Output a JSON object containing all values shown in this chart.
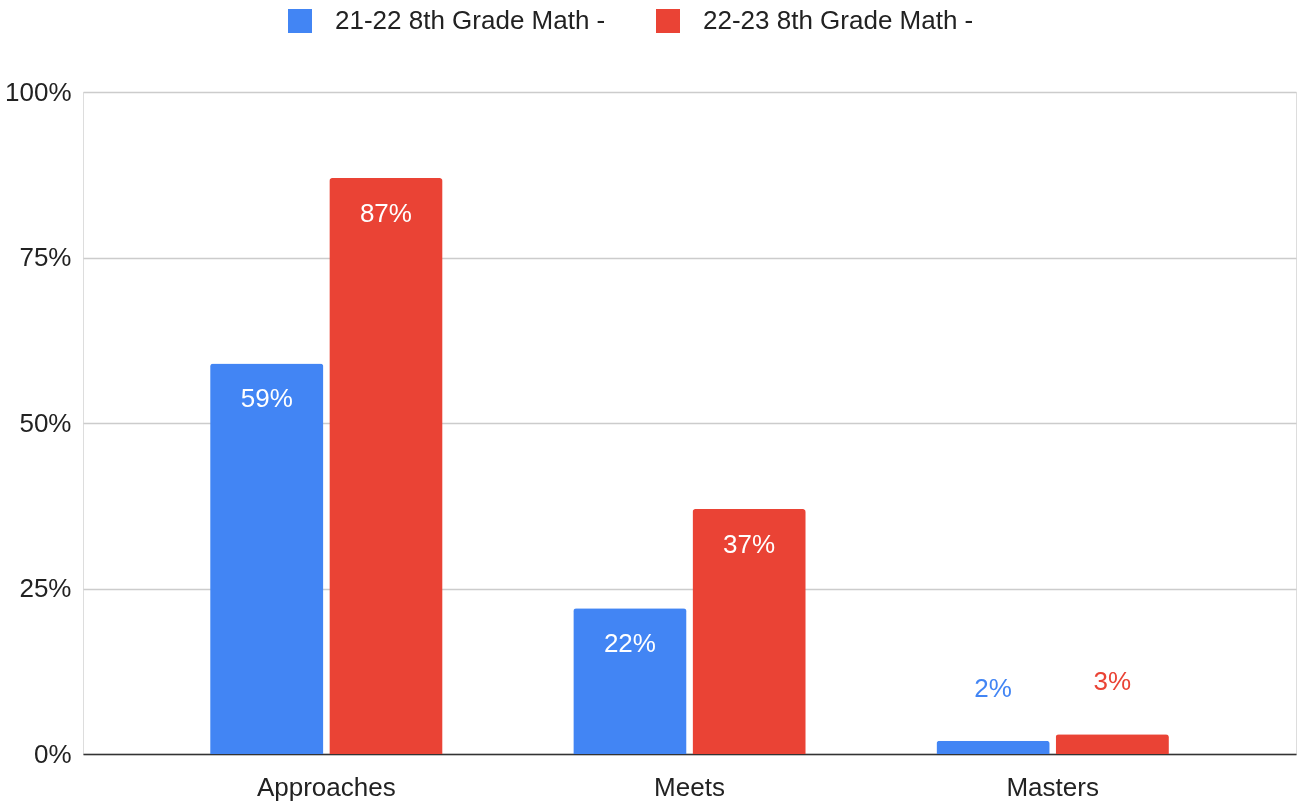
{
  "chart_data": {
    "type": "bar",
    "categories": [
      "Approaches",
      "Meets",
      "Masters"
    ],
    "series": [
      {
        "name": "21-22 8th Grade Math -",
        "color": "#4285f4",
        "values": [
          59,
          22,
          2
        ],
        "value_labels": [
          "59%",
          "22%",
          "2%"
        ]
      },
      {
        "name": "22-23 8th Grade Math -",
        "color": "#ea4335",
        "values": [
          87,
          37,
          3
        ],
        "value_labels": [
          "87%",
          "37%",
          "3%"
        ]
      }
    ],
    "ylim": [
      0,
      100
    ],
    "yticks": [
      {
        "value": 0,
        "label": "0%"
      },
      {
        "value": 25,
        "label": "25%"
      },
      {
        "value": 50,
        "label": "50%"
      },
      {
        "value": 75,
        "label": "75%"
      },
      {
        "value": 100,
        "label": "100%"
      }
    ],
    "grid": "y",
    "legend": "top"
  }
}
